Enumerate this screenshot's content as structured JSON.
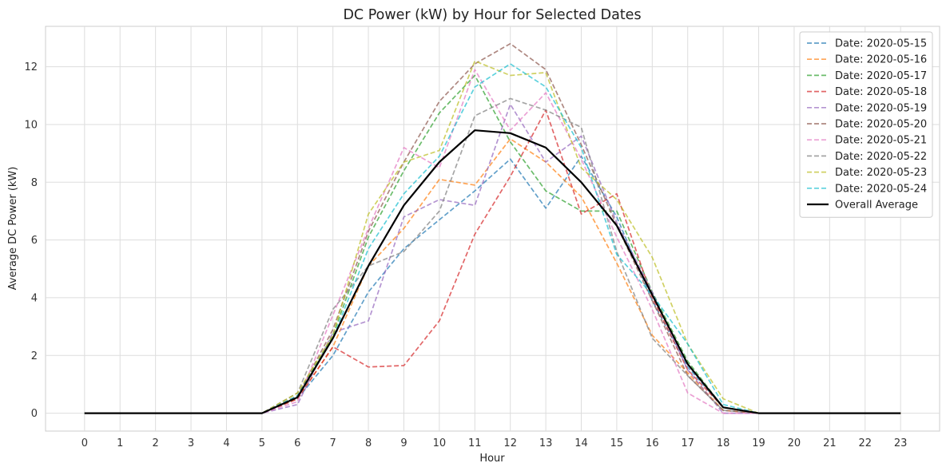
{
  "chart_data": {
    "type": "line",
    "title": "DC Power (kW) by Hour for Selected Dates",
    "xlabel": "Hour",
    "ylabel": "Average DC Power (kW)",
    "x": [
      0,
      1,
      2,
      3,
      4,
      5,
      6,
      7,
      8,
      9,
      10,
      11,
      12,
      13,
      14,
      15,
      16,
      17,
      18,
      19,
      20,
      21,
      22,
      23
    ],
    "xlim": [
      -1.1,
      24.1
    ],
    "ylim": [
      -0.62,
      13.4
    ],
    "yticks": [
      0,
      2,
      4,
      6,
      8,
      10,
      12
    ],
    "grid": true,
    "legend_position": "top-right",
    "series": [
      {
        "name": "Date: 2020-05-15",
        "color": "#1f77b4",
        "style": "dashed",
        "values": [
          0,
          0,
          0,
          0,
          0,
          0,
          0.5,
          2.0,
          4.2,
          5.7,
          6.7,
          7.7,
          8.8,
          7.1,
          8.9,
          6.8,
          3.9,
          1.6,
          0.2,
          0,
          0,
          0,
          0,
          0
        ]
      },
      {
        "name": "Date: 2020-05-16",
        "color": "#ff7f0e",
        "style": "dashed",
        "values": [
          0,
          0,
          0,
          0,
          0,
          0,
          0.5,
          2.3,
          5.1,
          6.4,
          8.1,
          7.9,
          9.5,
          8.7,
          7.5,
          5.2,
          2.7,
          1.4,
          0.1,
          0,
          0,
          0,
          0,
          0
        ]
      },
      {
        "name": "Date: 2020-05-17",
        "color": "#2ca02c",
        "style": "dashed",
        "values": [
          0,
          0,
          0,
          0,
          0,
          0,
          0.6,
          2.7,
          6.1,
          8.4,
          10.4,
          11.7,
          9.4,
          7.7,
          7.0,
          7.0,
          4.2,
          1.8,
          0.2,
          0,
          0,
          0,
          0,
          0
        ]
      },
      {
        "name": "Date: 2020-05-18",
        "color": "#d62728",
        "style": "dashed",
        "values": [
          0,
          0,
          0,
          0,
          0,
          0,
          0.5,
          2.3,
          1.6,
          1.65,
          3.2,
          6.2,
          8.2,
          10.5,
          6.9,
          7.6,
          4.0,
          1.5,
          0.2,
          0,
          0,
          0,
          0,
          0
        ]
      },
      {
        "name": "Date: 2020-05-19",
        "color": "#9467bd",
        "style": "dashed",
        "values": [
          0,
          0,
          0,
          0,
          0,
          0,
          0.3,
          2.8,
          3.2,
          6.8,
          7.4,
          7.2,
          10.7,
          8.7,
          9.6,
          6.6,
          4.2,
          1.5,
          0,
          0,
          0,
          0,
          0,
          0
        ]
      },
      {
        "name": "Date: 2020-05-20",
        "color": "#8c564b",
        "style": "dashed",
        "values": [
          0,
          0,
          0,
          0,
          0,
          0,
          0.6,
          2.9,
          6.3,
          8.7,
          10.8,
          12.1,
          12.8,
          11.9,
          9.3,
          6.5,
          3.9,
          1.3,
          0.1,
          0,
          0,
          0,
          0,
          0
        ]
      },
      {
        "name": "Date: 2020-05-21",
        "color": "#e377c2",
        "style": "dashed",
        "values": [
          0,
          0,
          0,
          0,
          0,
          0,
          0.4,
          3.4,
          6.4,
          9.2,
          8.5,
          11.9,
          9.8,
          11.1,
          8.8,
          6.1,
          3.6,
          0.7,
          0,
          0,
          0,
          0,
          0,
          0
        ]
      },
      {
        "name": "Date: 2020-05-22",
        "color": "#7f7f7f",
        "style": "dashed",
        "values": [
          0,
          0,
          0,
          0,
          0,
          0,
          0.7,
          3.6,
          5.1,
          5.6,
          7.0,
          10.3,
          10.9,
          10.5,
          9.9,
          5.6,
          2.6,
          1.3,
          0.1,
          0,
          0,
          0,
          0,
          0
        ]
      },
      {
        "name": "Date: 2020-05-23",
        "color": "#bcbd22",
        "style": "dashed",
        "values": [
          0,
          0,
          0,
          0,
          0,
          0,
          0.7,
          2.7,
          6.9,
          8.7,
          9.1,
          12.2,
          11.7,
          11.8,
          8.5,
          7.4,
          5.4,
          2.4,
          0.5,
          0,
          0,
          0,
          0,
          0
        ]
      },
      {
        "name": "Date: 2020-05-24",
        "color": "#17becf",
        "style": "dashed",
        "values": [
          0,
          0,
          0,
          0,
          0,
          0,
          0.6,
          2.6,
          5.7,
          7.6,
          8.9,
          11.3,
          12.1,
          11.3,
          9.2,
          5.5,
          4.1,
          2.4,
          0.3,
          0,
          0,
          0,
          0,
          0
        ]
      },
      {
        "name": "Overall Average",
        "color": "#000000",
        "style": "solid",
        "values": [
          0,
          0,
          0,
          0,
          0,
          0,
          0.55,
          2.6,
          5.1,
          7.2,
          8.7,
          9.8,
          9.7,
          9.2,
          8.0,
          6.5,
          4.1,
          1.7,
          0.2,
          0,
          0,
          0,
          0,
          0
        ]
      }
    ]
  }
}
